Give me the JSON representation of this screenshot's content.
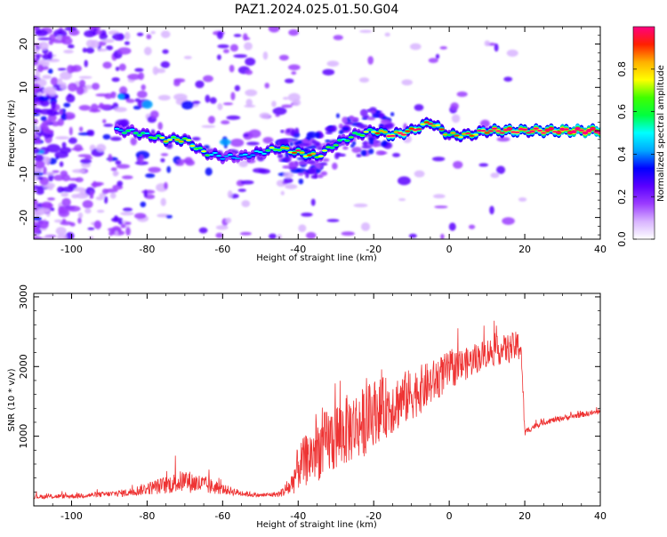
{
  "figure": {
    "title": "PAZ1.2024.025.01.50.G04"
  },
  "chart_data": [
    {
      "type": "heatmap",
      "xlabel": "Height of straight line (km)",
      "ylabel": "Frequency (Hz)",
      "xlim": [
        -110,
        40
      ],
      "ylim": [
        -25,
        24
      ],
      "x_ticks": [
        -100,
        -80,
        -60,
        -40,
        -20,
        0,
        20,
        40
      ],
      "y_ticks": [
        -20,
        -10,
        0,
        10,
        20
      ],
      "colorbar": {
        "label": "Normalized spectral amplitude",
        "range": [
          0,
          1
        ],
        "ticks": [
          0.0,
          0.2,
          0.4,
          0.6,
          0.8
        ],
        "colors": [
          "#ffffff",
          "#d8b4ff",
          "#9b3cff",
          "#5a00ff",
          "#0000ff",
          "#00a8ff",
          "#00ffff",
          "#00ff40",
          "#40ff00",
          "#ffff00",
          "#ffb000",
          "#ff2000",
          "#ff0080"
        ]
      },
      "ridge": {
        "x": [
          -85,
          -80,
          -75,
          -70,
          -65,
          -60,
          -55,
          -50,
          -45,
          -40,
          -35,
          -30,
          -25,
          -20,
          -15,
          -10,
          -5,
          0,
          5,
          10,
          15,
          20,
          25,
          30,
          35,
          40
        ],
        "y": [
          0,
          -1,
          -2,
          -2,
          -5,
          -6,
          -6,
          -5,
          -4,
          -5,
          -6,
          -3,
          -1,
          0,
          -1,
          0,
          2,
          -1,
          -1,
          0,
          0,
          0,
          0,
          0,
          0,
          0
        ],
        "amplitude": [
          0.3,
          0.35,
          0.45,
          0.45,
          0.4,
          0.25,
          0.25,
          0.3,
          0.45,
          0.55,
          0.45,
          0.35,
          0.35,
          0.45,
          0.65,
          0.6,
          0.55,
          0.45,
          0.55,
          0.6,
          0.75,
          0.7,
          0.75,
          0.85,
          0.9,
          0.95
        ]
      }
    },
    {
      "type": "line",
      "xlabel": "Height of straight line (km)",
      "ylabel": "SNR (10 * v/v)",
      "xlim": [
        -110,
        40
      ],
      "ylim": [
        0,
        3050
      ],
      "x_ticks": [
        -100,
        -80,
        -60,
        -40,
        -20,
        0,
        20,
        40
      ],
      "y_ticks": [
        1000,
        2000,
        3000
      ],
      "series": [
        {
          "color": "#ee3333",
          "x": [
            -110,
            -100,
            -90,
            -85,
            -80,
            -75,
            -70,
            -65,
            -60,
            -55,
            -50,
            -45,
            -42,
            -40,
            -35,
            -30,
            -25,
            -22,
            -20,
            -15,
            -10,
            -5,
            0,
            5,
            10,
            15,
            19,
            20,
            22,
            25,
            30,
            35,
            40
          ],
          "y": [
            130,
            140,
            170,
            190,
            250,
            300,
            360,
            300,
            240,
            180,
            150,
            170,
            280,
            550,
            800,
            1000,
            1150,
            1220,
            1350,
            1450,
            1600,
            1750,
            1950,
            2050,
            2200,
            2250,
            2300,
            1050,
            1130,
            1200,
            1260,
            1310,
            1350
          ],
          "noise": [
            60,
            70,
            80,
            120,
            180,
            260,
            330,
            280,
            150,
            90,
            60,
            80,
            300,
            650,
            900,
            1050,
            1000,
            1000,
            950,
            850,
            750,
            650,
            550,
            450,
            420,
            420,
            450,
            120,
            90,
            80,
            80,
            80,
            80
          ]
        }
      ]
    }
  ]
}
